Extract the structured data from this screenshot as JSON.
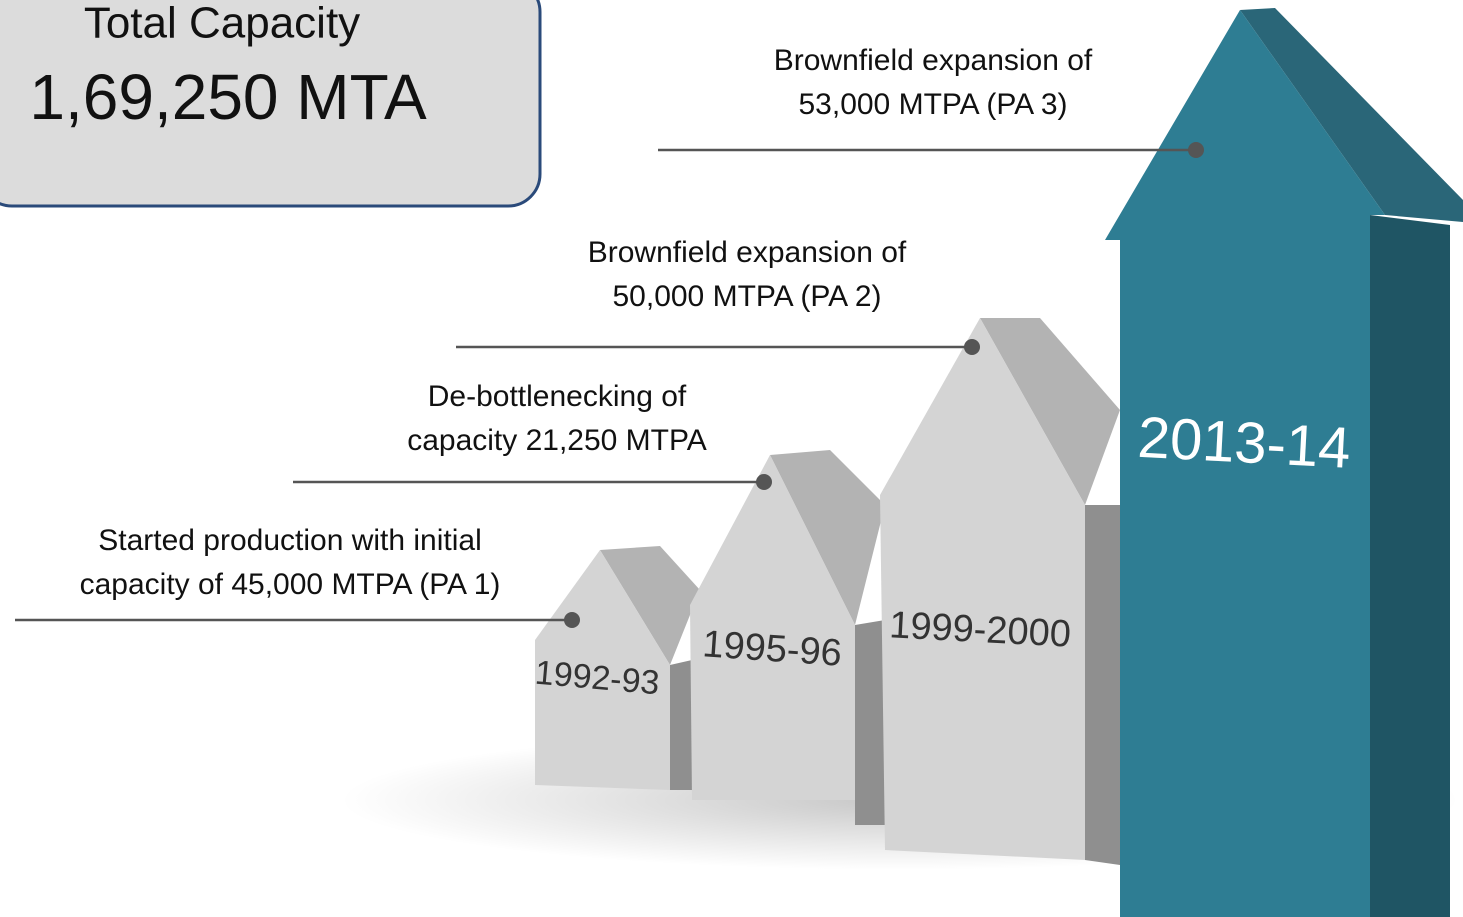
{
  "summary": {
    "title": "Total Capacity",
    "value": "1,69,250 MTA"
  },
  "milestones": [
    {
      "year": "1992-93",
      "lines": [
        "Started production with initial",
        "capacity of 45,000 MTPA (PA 1)"
      ]
    },
    {
      "year": "1995-96",
      "lines": [
        "De-bottlenecking  of",
        "capacity 21,250 MTPA"
      ]
    },
    {
      "year": "1999-2000",
      "lines": [
        "Brownfield expansion of",
        "50,000 MTPA  (PA 2)"
      ]
    },
    {
      "year": "2013-14",
      "lines": [
        "Brownfield expansion of",
        "53,000 MTPA  (PA 3)"
      ]
    }
  ]
}
